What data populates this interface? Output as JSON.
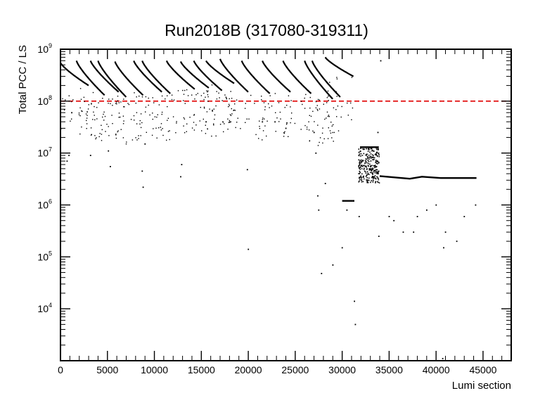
{
  "chart_data": {
    "type": "scatter",
    "title": "Run2018B (317080-319311)",
    "xlabel": "Lumi section",
    "ylabel": "Total PCC / LS",
    "xlim": [
      0,
      48000
    ],
    "ylim": [
      1000,
      1000000000
    ],
    "yscale": "log",
    "grid": false,
    "x_ticks": [
      {
        "value": 0,
        "label": "0"
      },
      {
        "value": 5000,
        "label": "5000"
      },
      {
        "value": 10000,
        "label": "10000"
      },
      {
        "value": 15000,
        "label": "15000"
      },
      {
        "value": 20000,
        "label": "20000"
      },
      {
        "value": 25000,
        "label": "25000"
      },
      {
        "value": 30000,
        "label": "30000"
      },
      {
        "value": 35000,
        "label": "35000"
      },
      {
        "value": 40000,
        "label": "40000"
      },
      {
        "value": 45000,
        "label": "45000"
      }
    ],
    "y_ticks": [
      {
        "value": 10000,
        "base": "10",
        "exp": "4"
      },
      {
        "value": 100000,
        "base": "10",
        "exp": "5"
      },
      {
        "value": 1000000,
        "base": "10",
        "exp": "6"
      },
      {
        "value": 10000000,
        "base": "10",
        "exp": "7"
      },
      {
        "value": 100000000,
        "base": "10",
        "exp": "8"
      },
      {
        "value": 1000000000,
        "base": "10",
        "exp": "9"
      }
    ],
    "reference_line": {
      "y": 100000000,
      "color": "#e00000",
      "style": "dashed"
    },
    "point_color": "#000000",
    "fills": [
      {
        "x": 0,
        "y_start": 550000000,
        "y_end": 200000000
      },
      {
        "x": 1700,
        "y_start": 600000000,
        "y_end": 130000000
      },
      {
        "x": 3200,
        "y_start": 600000000,
        "y_end": 150000000
      },
      {
        "x": 4000,
        "y_start": 600000000,
        "y_end": 120000000
      },
      {
        "x": 5800,
        "y_start": 580000000,
        "y_end": 130000000
      },
      {
        "x": 7800,
        "y_start": 600000000,
        "y_end": 150000000
      },
      {
        "x": 8700,
        "y_start": 600000000,
        "y_end": 140000000
      },
      {
        "x": 11300,
        "y_start": 600000000,
        "y_end": 170000000
      },
      {
        "x": 12800,
        "y_start": 580000000,
        "y_end": 180000000
      },
      {
        "x": 14200,
        "y_start": 600000000,
        "y_end": 160000000
      },
      {
        "x": 15500,
        "y_start": 600000000,
        "y_end": 220000000
      },
      {
        "x": 17000,
        "y_start": 650000000,
        "y_end": 150000000
      },
      {
        "x": 19300,
        "y_start": 600000000,
        "y_end": 140000000
      },
      {
        "x": 21500,
        "y_start": 600000000,
        "y_end": 150000000
      },
      {
        "x": 23700,
        "y_start": 600000000,
        "y_end": 140000000
      },
      {
        "x": 26000,
        "y_start": 600000000,
        "y_end": 110000000
      },
      {
        "x": 26800,
        "y_start": 600000000,
        "y_end": 120000000
      },
      {
        "x": 28200,
        "y_start": 700000000,
        "y_end": 300000000
      }
    ],
    "scatter_points": [
      {
        "x": 700,
        "y": 7000000
      },
      {
        "x": 900,
        "y": 9000000
      },
      {
        "x": 1200,
        "y": 60000000
      },
      {
        "x": 3200,
        "y": 9000000
      },
      {
        "x": 5100,
        "y": 11000000
      },
      {
        "x": 5300,
        "y": 5500000
      },
      {
        "x": 8700,
        "y": 4500000
      },
      {
        "x": 8800,
        "y": 2200000
      },
      {
        "x": 9000,
        "y": 15000000
      },
      {
        "x": 12800,
        "y": 3500000
      },
      {
        "x": 12900,
        "y": 6000000
      },
      {
        "x": 15500,
        "y": 40000000
      },
      {
        "x": 19900,
        "y": 4800000
      },
      {
        "x": 20000,
        "y": 140000
      },
      {
        "x": 21500,
        "y": 40000000
      },
      {
        "x": 24000,
        "y": 30000000
      },
      {
        "x": 27000,
        "y": 25000000
      },
      {
        "x": 27200,
        "y": 10000000
      },
      {
        "x": 27400,
        "y": 1500000
      },
      {
        "x": 27500,
        "y": 800000
      },
      {
        "x": 27800,
        "y": 48000
      },
      {
        "x": 28200,
        "y": 2600000
      },
      {
        "x": 29000,
        "y": 70000
      },
      {
        "x": 30000,
        "y": 150000
      },
      {
        "x": 30500,
        "y": 800000
      },
      {
        "x": 31300,
        "y": 14000
      },
      {
        "x": 31400,
        "y": 5000
      },
      {
        "x": 31800,
        "y": 600000
      },
      {
        "x": 33300,
        "y": 3000000
      },
      {
        "x": 33800,
        "y": 25000000
      },
      {
        "x": 33900,
        "y": 250000
      },
      {
        "x": 34100,
        "y": 600000000
      },
      {
        "x": 35000,
        "y": 600000
      },
      {
        "x": 35500,
        "y": 500000
      },
      {
        "x": 36500,
        "y": 300000
      },
      {
        "x": 37600,
        "y": 300000
      },
      {
        "x": 38000,
        "y": 600000
      },
      {
        "x": 39000,
        "y": 800000
      },
      {
        "x": 40000,
        "y": 1000000
      },
      {
        "x": 40800,
        "y": 150000
      },
      {
        "x": 41000,
        "y": 300000
      },
      {
        "x": 42200,
        "y": 200000
      },
      {
        "x": 43000,
        "y": 600000
      },
      {
        "x": 44200,
        "y": 1000000
      },
      {
        "x": 40700,
        "y": 1100
      }
    ],
    "lines": [
      {
        "points": [
          [
            30000,
            1200000
          ],
          [
            31300,
            1200000
          ]
        ]
      },
      {
        "points": [
          [
            31900,
            13000000
          ],
          [
            33900,
            13000000
          ]
        ]
      },
      {
        "points": [
          [
            34000,
            3600000
          ],
          [
            37200,
            3200000
          ],
          [
            38500,
            3500000
          ],
          [
            40500,
            3300000
          ],
          [
            44300,
            3300000
          ]
        ]
      }
    ],
    "dense_blocks": [
      {
        "x_start": 31700,
        "x_end": 33900,
        "y_low": 2700000,
        "y_high": 13000000
      }
    ]
  }
}
